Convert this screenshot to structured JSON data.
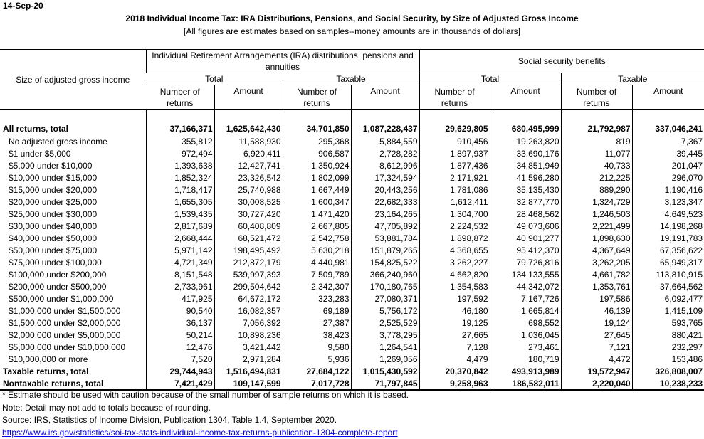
{
  "date": "14-Sep-20",
  "title": "2018 Individual Income Tax: IRA Distributions, Pensions, and Social Security, by Size of Adjusted Gross Income",
  "subtitle": "[All figures are estimates based on samples--money amounts are in thousands of dollars]",
  "header": {
    "row_label": "Size of adjusted gross income",
    "group1": "Individual Retirement Arrangements (IRA) distributions, pensions and annuities",
    "group2": "Social security benefits",
    "total": "Total",
    "taxable": "Taxable",
    "number_of_returns": "Number of returns",
    "amount": "Amount"
  },
  "rows": [
    {
      "label": "All returns, total",
      "bold": true,
      "values": [
        "37,166,371",
        "1,625,642,430",
        "34,701,850",
        "1,087,228,437",
        "29,629,805",
        "680,495,999",
        "21,792,987",
        "337,046,241"
      ]
    },
    {
      "label": "No adjusted gross income",
      "values": [
        "355,812",
        "11,588,930",
        "295,368",
        "5,884,559",
        "910,456",
        "19,263,820",
        "819",
        "7,367"
      ]
    },
    {
      "label": "$1 under $5,000",
      "values": [
        "972,494",
        "6,920,411",
        "906,587",
        "2,728,282",
        "1,897,937",
        "33,690,176",
        "11,077",
        "39,445"
      ]
    },
    {
      "label": "$5,000 under $10,000",
      "values": [
        "1,393,638",
        "12,427,741",
        "1,350,924",
        "8,612,996",
        "1,877,436",
        "34,851,949",
        "40,733",
        "201,047"
      ]
    },
    {
      "label": "$10,000 under $15,000",
      "values": [
        "1,852,324",
        "23,326,542",
        "1,802,099",
        "17,324,594",
        "2,171,921",
        "41,596,280",
        "212,225",
        "296,070"
      ]
    },
    {
      "label": "$15,000 under $20,000",
      "values": [
        "1,718,417",
        "25,740,988",
        "1,667,449",
        "20,443,256",
        "1,781,086",
        "35,135,430",
        "889,290",
        "1,190,416"
      ]
    },
    {
      "label": "$20,000 under $25,000",
      "values": [
        "1,655,305",
        "30,008,525",
        "1,600,347",
        "22,682,333",
        "1,612,411",
        "32,877,770",
        "1,324,729",
        "3,123,347"
      ]
    },
    {
      "label": "$25,000 under $30,000",
      "values": [
        "1,539,435",
        "30,727,420",
        "1,471,420",
        "23,164,265",
        "1,304,700",
        "28,468,562",
        "1,246,503",
        "4,649,523"
      ]
    },
    {
      "label": "$30,000 under $40,000",
      "values": [
        "2,817,689",
        "60,408,809",
        "2,667,805",
        "47,705,892",
        "2,224,532",
        "49,073,606",
        "2,221,499",
        "14,198,268"
      ]
    },
    {
      "label": "$40,000 under $50,000",
      "values": [
        "2,668,444",
        "68,521,472",
        "2,542,758",
        "53,881,784",
        "1,898,872",
        "40,901,277",
        "1,898,630",
        "19,191,783"
      ]
    },
    {
      "label": "$50,000 under $75,000",
      "values": [
        "5,971,142",
        "198,495,492",
        "5,630,218",
        "151,879,265",
        "4,368,655",
        "95,412,370",
        "4,367,649",
        "67,356,622"
      ]
    },
    {
      "label": "$75,000 under $100,000",
      "values": [
        "4,721,349",
        "212,872,179",
        "4,440,981",
        "154,825,522",
        "3,262,227",
        "79,726,816",
        "3,262,205",
        "65,949,317"
      ]
    },
    {
      "label": "$100,000 under $200,000",
      "values": [
        "8,151,548",
        "539,997,393",
        "7,509,789",
        "366,240,960",
        "4,662,820",
        "134,133,555",
        "4,661,782",
        "113,810,915"
      ]
    },
    {
      "label": "$200,000 under $500,000",
      "values": [
        "2,733,961",
        "299,504,642",
        "2,342,307",
        "170,180,765",
        "1,354,583",
        "44,342,072",
        "1,353,761",
        "37,664,562"
      ]
    },
    {
      "label": "$500,000 under $1,000,000",
      "values": [
        "417,925",
        "64,672,172",
        "323,283",
        "27,080,371",
        "197,592",
        "7,167,726",
        "197,586",
        "6,092,477"
      ]
    },
    {
      "label": "$1,000,000 under $1,500,000",
      "values": [
        "90,540",
        "16,082,357",
        "69,189",
        "5,756,172",
        "46,180",
        "1,665,814",
        "46,139",
        "1,415,109"
      ]
    },
    {
      "label": "$1,500,000 under $2,000,000",
      "values": [
        "36,137",
        "7,056,392",
        "27,387",
        "2,525,529",
        "19,125",
        "698,552",
        "19,124",
        "593,765"
      ]
    },
    {
      "label": "$2,000,000 under $5,000,000",
      "values": [
        "50,214",
        "10,898,236",
        "38,423",
        "3,778,295",
        "27,665",
        "1,036,045",
        "27,645",
        "880,421"
      ]
    },
    {
      "label": "$5,000,000 under $10,000,000",
      "values": [
        "12,476",
        "3,421,442",
        "9,580",
        "1,264,541",
        "7,128",
        "273,461",
        "7,121",
        "232,297"
      ]
    },
    {
      "label": "$10,000,000 or more",
      "values": [
        "7,520",
        "2,971,284",
        "5,936",
        "1,269,056",
        "4,479",
        "180,719",
        "4,472",
        "153,486"
      ]
    },
    {
      "label": "Taxable returns, total",
      "bold": true,
      "values": [
        "29,744,943",
        "1,516,494,831",
        "27,684,122",
        "1,015,430,592",
        "20,370,842",
        "493,913,989",
        "19,572,947",
        "326,808,007"
      ]
    },
    {
      "label": "Nontaxable returns, total",
      "bold": true,
      "values": [
        "7,421,429",
        "109,147,599",
        "7,017,728",
        "71,797,845",
        "9,258,963",
        "186,582,011",
        "2,220,040",
        "10,238,233"
      ]
    }
  ],
  "notes": {
    "estimate": "* Estimate should be used with caution because of the small number of sample returns on which it is based.",
    "rounding": "Note:  Detail may not add to totals because of rounding.",
    "source": "Source: IRS, Statistics of Income Division, Publication 1304, Table 1.4, September 2020.",
    "link": "https://www.irs.gov/statistics/soi-tax-stats-individual-income-tax-returns-publication-1304-complete-report",
    "link_color": "#0000ee"
  }
}
